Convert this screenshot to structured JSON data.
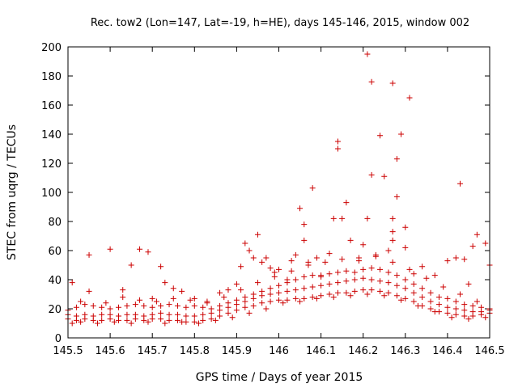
{
  "chart_data": {
    "type": "scatter",
    "title": "Rec. tow2 (Lon=147, Lat=-19, h=HE), days 145-146, 2015, window 002",
    "xlabel": "GPS time / Days of year 2015",
    "ylabel": "STEC from uqrg / TECUs",
    "xlim": [
      145.5,
      146.5
    ],
    "ylim": [
      0,
      200
    ],
    "xticks": [
      145.5,
      145.6,
      145.7,
      145.8,
      145.9,
      146,
      146.1,
      146.2,
      146.3,
      146.4,
      146.5
    ],
    "xtick_labels": [
      "145.5",
      "145.6",
      "145.7",
      "145.8",
      "145.9",
      "146",
      "146.1",
      "146.2",
      "146.3",
      "146.4",
      "146.5"
    ],
    "yticks": [
      0,
      20,
      40,
      60,
      80,
      100,
      120,
      140,
      160,
      180,
      200
    ],
    "ytick_labels": [
      "0",
      "20",
      "40",
      "60",
      "80",
      "100",
      "120",
      "140",
      "160",
      "180",
      "200"
    ],
    "grid": false,
    "marker": "plus",
    "color": "#cc0000",
    "series": [
      {
        "points": [
          [
            145.51,
            38
          ],
          [
            145.55,
            57
          ],
          [
            145.55,
            32
          ],
          [
            145.6,
            61
          ],
          [
            145.63,
            33
          ],
          [
            145.65,
            50
          ],
          [
            145.67,
            61
          ],
          [
            145.69,
            59
          ],
          [
            145.7,
            27
          ],
          [
            145.72,
            49
          ],
          [
            145.73,
            38
          ],
          [
            145.75,
            34
          ],
          [
            145.77,
            32
          ],
          [
            145.8,
            27
          ],
          [
            145.83,
            24
          ],
          [
            145.86,
            31
          ],
          [
            145.88,
            33
          ],
          [
            145.9,
            37
          ],
          [
            145.91,
            49
          ],
          [
            145.92,
            65
          ],
          [
            145.93,
            60
          ],
          [
            145.94,
            55
          ],
          [
            145.95,
            71
          ],
          [
            145.96,
            52
          ],
          [
            145.97,
            55
          ],
          [
            145.98,
            48
          ],
          [
            145.99,
            45
          ],
          [
            146.0,
            47
          ],
          [
            146.02,
            40
          ],
          [
            146.03,
            53
          ],
          [
            146.04,
            57
          ],
          [
            146.05,
            89
          ],
          [
            146.06,
            78
          ],
          [
            146.06,
            67
          ],
          [
            146.07,
            52
          ],
          [
            146.08,
            103
          ],
          [
            146.09,
            55
          ],
          [
            146.1,
            43
          ],
          [
            146.12,
            58
          ],
          [
            146.13,
            82
          ],
          [
            146.14,
            130
          ],
          [
            146.14,
            135
          ],
          [
            146.15,
            82
          ],
          [
            146.16,
            93
          ],
          [
            146.17,
            67
          ],
          [
            146.19,
            55
          ],
          [
            146.2,
            64
          ],
          [
            146.21,
            195
          ],
          [
            146.21,
            82
          ],
          [
            146.22,
            176
          ],
          [
            146.22,
            112
          ],
          [
            146.23,
            57
          ],
          [
            146.24,
            139
          ],
          [
            146.25,
            111
          ],
          [
            146.26,
            60
          ],
          [
            146.27,
            175
          ],
          [
            146.27,
            82
          ],
          [
            146.27,
            73
          ],
          [
            146.27,
            67
          ],
          [
            146.28,
            123
          ],
          [
            146.28,
            97
          ],
          [
            146.29,
            140
          ],
          [
            146.3,
            76
          ],
          [
            146.3,
            62
          ],
          [
            146.31,
            165
          ],
          [
            146.32,
            44
          ],
          [
            146.34,
            49
          ],
          [
            146.37,
            43
          ],
          [
            146.4,
            53
          ],
          [
            146.42,
            55
          ],
          [
            146.43,
            106
          ],
          [
            146.44,
            54
          ],
          [
            146.45,
            37
          ],
          [
            146.46,
            63
          ],
          [
            146.47,
            71
          ],
          [
            146.49,
            65
          ],
          [
            146.5,
            50
          ]
        ]
      },
      {
        "points": [
          [
            145.5,
            19
          ],
          [
            145.52,
            21
          ],
          [
            145.54,
            23
          ],
          [
            145.56,
            22
          ],
          [
            145.58,
            21
          ],
          [
            145.6,
            20
          ],
          [
            145.62,
            21
          ],
          [
            145.64,
            22
          ],
          [
            145.66,
            23
          ],
          [
            145.68,
            22
          ],
          [
            145.7,
            21
          ],
          [
            145.72,
            22
          ],
          [
            145.74,
            23
          ],
          [
            145.76,
            22
          ],
          [
            145.78,
            21
          ],
          [
            145.8,
            22
          ],
          [
            145.82,
            21
          ],
          [
            145.84,
            20
          ],
          [
            145.86,
            22
          ],
          [
            145.88,
            24
          ],
          [
            145.9,
            26
          ],
          [
            145.92,
            28
          ],
          [
            145.94,
            30
          ],
          [
            145.96,
            32
          ],
          [
            145.98,
            34
          ],
          [
            146.0,
            36
          ],
          [
            146.02,
            38
          ],
          [
            146.04,
            40
          ],
          [
            146.06,
            42
          ],
          [
            146.08,
            43
          ],
          [
            146.1,
            42
          ],
          [
            146.12,
            44
          ],
          [
            146.14,
            45
          ],
          [
            146.16,
            46
          ],
          [
            146.18,
            45
          ],
          [
            146.2,
            47
          ],
          [
            146.22,
            48
          ],
          [
            146.24,
            47
          ],
          [
            146.26,
            45
          ],
          [
            146.28,
            43
          ],
          [
            146.3,
            40
          ],
          [
            146.32,
            37
          ],
          [
            146.34,
            34
          ],
          [
            146.36,
            31
          ],
          [
            146.38,
            28
          ],
          [
            146.4,
            27
          ],
          [
            146.42,
            25
          ],
          [
            146.44,
            23
          ],
          [
            146.46,
            22
          ],
          [
            146.48,
            21
          ],
          [
            146.5,
            20
          ]
        ]
      },
      {
        "points": [
          [
            145.5,
            13
          ],
          [
            145.52,
            12
          ],
          [
            145.54,
            13
          ],
          [
            145.56,
            12
          ],
          [
            145.58,
            12
          ],
          [
            145.6,
            13
          ],
          [
            145.62,
            12
          ],
          [
            145.64,
            12
          ],
          [
            145.66,
            13
          ],
          [
            145.68,
            12
          ],
          [
            145.7,
            13
          ],
          [
            145.72,
            13
          ],
          [
            145.74,
            12
          ],
          [
            145.76,
            12
          ],
          [
            145.78,
            11
          ],
          [
            145.8,
            11
          ],
          [
            145.82,
            12
          ],
          [
            145.84,
            13
          ],
          [
            145.86,
            15
          ],
          [
            145.88,
            17
          ],
          [
            145.9,
            19
          ],
          [
            145.92,
            21
          ],
          [
            145.94,
            22
          ],
          [
            145.96,
            24
          ],
          [
            145.98,
            25
          ],
          [
            146.0,
            26
          ],
          [
            146.02,
            26
          ],
          [
            146.04,
            27
          ],
          [
            146.06,
            27
          ],
          [
            146.08,
            28
          ],
          [
            146.1,
            29
          ],
          [
            146.12,
            30
          ],
          [
            146.14,
            31
          ],
          [
            146.16,
            31
          ],
          [
            146.18,
            32
          ],
          [
            146.2,
            33
          ],
          [
            146.22,
            33
          ],
          [
            146.24,
            32
          ],
          [
            146.26,
            31
          ],
          [
            146.28,
            29
          ],
          [
            146.3,
            27
          ],
          [
            146.32,
            25
          ],
          [
            146.34,
            22
          ],
          [
            146.36,
            20
          ],
          [
            146.38,
            18
          ],
          [
            146.4,
            17
          ],
          [
            146.42,
            16
          ],
          [
            146.44,
            15
          ],
          [
            146.46,
            15
          ],
          [
            146.48,
            16
          ],
          [
            146.5,
            17
          ]
        ]
      },
      {
        "points": [
          [
            145.5,
            16
          ],
          [
            145.52,
            15
          ],
          [
            145.54,
            16
          ],
          [
            145.56,
            15
          ],
          [
            145.58,
            16
          ],
          [
            145.6,
            16
          ],
          [
            145.62,
            15
          ],
          [
            145.64,
            16
          ],
          [
            145.66,
            16
          ],
          [
            145.68,
            15
          ],
          [
            145.7,
            16
          ],
          [
            145.72,
            17
          ],
          [
            145.74,
            16
          ],
          [
            145.76,
            16
          ],
          [
            145.78,
            15
          ],
          [
            145.8,
            15
          ],
          [
            145.82,
            16
          ],
          [
            145.84,
            17
          ],
          [
            145.86,
            19
          ],
          [
            145.88,
            21
          ],
          [
            145.9,
            23
          ],
          [
            145.92,
            25
          ],
          [
            145.94,
            27
          ],
          [
            145.96,
            29
          ],
          [
            145.98,
            30
          ],
          [
            146.0,
            31
          ],
          [
            146.02,
            32
          ],
          [
            146.04,
            33
          ],
          [
            146.06,
            34
          ],
          [
            146.08,
            35
          ],
          [
            146.1,
            36
          ],
          [
            146.12,
            37
          ],
          [
            146.14,
            38
          ],
          [
            146.16,
            39
          ],
          [
            146.18,
            40
          ],
          [
            146.2,
            41
          ],
          [
            146.22,
            40
          ],
          [
            146.24,
            39
          ],
          [
            146.26,
            38
          ],
          [
            146.28,
            36
          ],
          [
            146.3,
            34
          ],
          [
            146.32,
            31
          ],
          [
            146.34,
            28
          ],
          [
            146.36,
            25
          ],
          [
            146.38,
            23
          ],
          [
            146.4,
            21
          ],
          [
            146.42,
            20
          ],
          [
            146.44,
            19
          ],
          [
            146.46,
            18
          ],
          [
            146.48,
            18
          ],
          [
            146.5,
            19
          ]
        ]
      },
      {
        "points": [
          [
            145.51,
            10
          ],
          [
            145.53,
            11
          ],
          [
            145.57,
            10
          ],
          [
            145.61,
            11
          ],
          [
            145.65,
            10
          ],
          [
            145.69,
            11
          ],
          [
            145.73,
            10
          ],
          [
            145.77,
            11
          ],
          [
            145.81,
            10
          ],
          [
            145.85,
            12
          ],
          [
            145.89,
            14
          ],
          [
            145.93,
            17
          ],
          [
            145.97,
            20
          ],
          [
            146.01,
            24
          ],
          [
            146.05,
            25
          ],
          [
            146.09,
            27
          ],
          [
            146.13,
            28
          ],
          [
            146.17,
            29
          ],
          [
            146.21,
            30
          ],
          [
            146.25,
            29
          ],
          [
            146.29,
            26
          ],
          [
            146.33,
            22
          ],
          [
            146.37,
            18
          ],
          [
            146.41,
            14
          ],
          [
            146.45,
            13
          ],
          [
            146.49,
            14
          ]
        ]
      },
      {
        "points": [
          [
            145.53,
            25
          ],
          [
            145.59,
            24
          ],
          [
            145.63,
            28
          ],
          [
            145.67,
            26
          ],
          [
            145.71,
            25
          ],
          [
            145.75,
            27
          ],
          [
            145.79,
            26
          ],
          [
            145.83,
            25
          ],
          [
            145.87,
            28
          ],
          [
            145.91,
            33
          ],
          [
            145.95,
            38
          ],
          [
            145.99,
            42
          ],
          [
            146.03,
            46
          ],
          [
            146.07,
            50
          ],
          [
            146.11,
            52
          ],
          [
            146.15,
            54
          ],
          [
            146.19,
            53
          ],
          [
            146.23,
            56
          ],
          [
            146.27,
            52
          ],
          [
            146.31,
            47
          ],
          [
            146.35,
            41
          ],
          [
            146.39,
            35
          ],
          [
            146.43,
            30
          ],
          [
            146.47,
            25
          ]
        ]
      }
    ]
  }
}
